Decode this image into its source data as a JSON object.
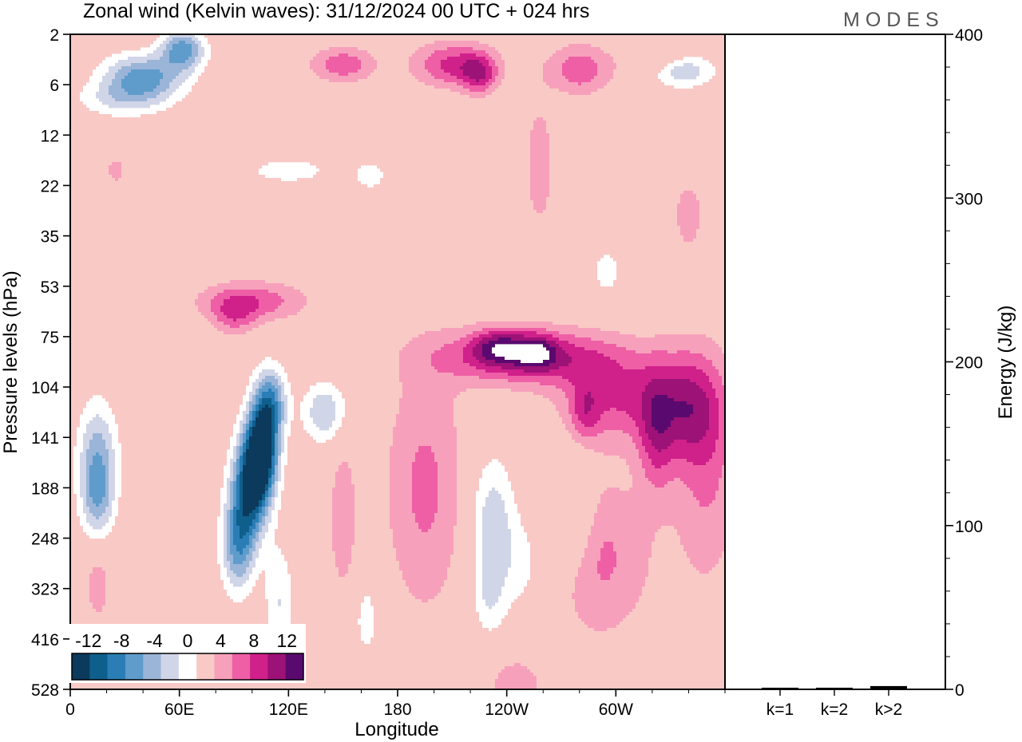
{
  "header": {
    "title": "Zonal wind (Kelvin waves):  31/12/2024  00 UTC  + 024 hrs",
    "logo": "MODES"
  },
  "chart_data": [
    {
      "type": "heatmap",
      "variable": "Zonal wind (Kelvin waves)",
      "xlabel": "Longitude",
      "ylabel": "Pressure levels (hPa)",
      "x_ticks": [
        "0",
        "60E",
        "120E",
        "180",
        "120W",
        "60W"
      ],
      "x_tick_lon": [
        0,
        60,
        120,
        180,
        240,
        300
      ],
      "xlim": [
        0,
        360
      ],
      "y_ticks": [
        "2",
        "6",
        "12",
        "22",
        "35",
        "53",
        "75",
        "104",
        "141",
        "188",
        "248",
        "323",
        "416",
        "528"
      ],
      "y_scale": "pressure levels (top 2 hPa, bottom 528 hPa)",
      "colorbar": {
        "labels": [
          "-12",
          "-8",
          "-4",
          "0",
          "4",
          "8",
          "12"
        ],
        "levels": [
          -14,
          -12,
          -10,
          -8,
          -6,
          -4,
          -2,
          2,
          4,
          6,
          8,
          10,
          12,
          14
        ],
        "colors": [
          "#0b3a5c",
          "#0f5f8c",
          "#2a7db5",
          "#5f9ccb",
          "#9ab5d8",
          "#d1d5e8",
          "#ffffff",
          "#f9c9c6",
          "#f7a0bb",
          "#ee5fa6",
          "#d0208a",
          "#9c1277",
          "#5a0a6e"
        ]
      },
      "features": [
        {
          "lon": [
            70,
            135
          ],
          "level": [
            75,
            220
          ],
          "value": -12
        },
        {
          "lon": [
            20,
            80
          ],
          "level": [
            3,
            7
          ],
          "value": -6
        },
        {
          "lon": [
            240,
            285
          ],
          "level": [
            20,
            30
          ],
          "value": 6
        },
        {
          "lon": [
            225,
            265
          ],
          "level": [
            75,
            104
          ],
          "value": 8
        },
        {
          "lon": [
            210,
            250
          ],
          "level": [
            3,
            7
          ],
          "value": 8
        },
        {
          "lon": [
            10,
            20
          ],
          "level": [
            120,
            170
          ],
          "value": -6
        },
        {
          "lon": [
            225,
            245
          ],
          "level": [
            140,
            300
          ],
          "value": -4
        }
      ]
    },
    {
      "type": "bar",
      "categories": [
        "k=1",
        "k=2",
        "k>2"
      ],
      "values": [
        1,
        1,
        2
      ],
      "ylabel": "Energy (J/kg)",
      "ylim": [
        0,
        400
      ],
      "y_ticks": [
        0,
        100,
        200,
        300,
        400
      ]
    }
  ]
}
